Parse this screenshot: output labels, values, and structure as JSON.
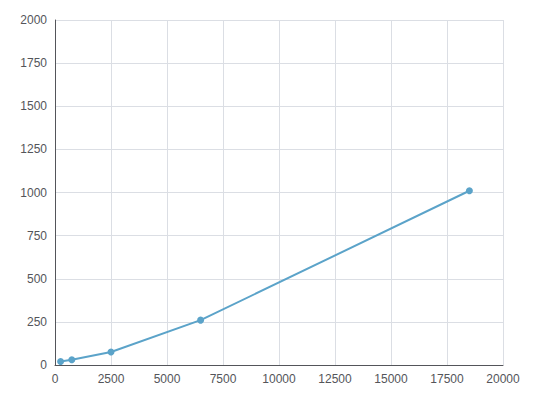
{
  "chart_data": {
    "type": "line",
    "x": [
      250,
      750,
      2500,
      6500,
      18500
    ],
    "values": [
      20,
      30,
      75,
      260,
      1010
    ],
    "color": "#5ba3c9",
    "marker": "circle",
    "xlim": [
      0,
      20000
    ],
    "ylim": [
      0,
      2000
    ],
    "xticks": [
      0,
      2500,
      5000,
      7500,
      10000,
      12500,
      15000,
      17500,
      20000
    ],
    "yticks": [
      0,
      250,
      500,
      750,
      1000,
      1250,
      1500,
      1750,
      2000
    ],
    "grid": true
  }
}
